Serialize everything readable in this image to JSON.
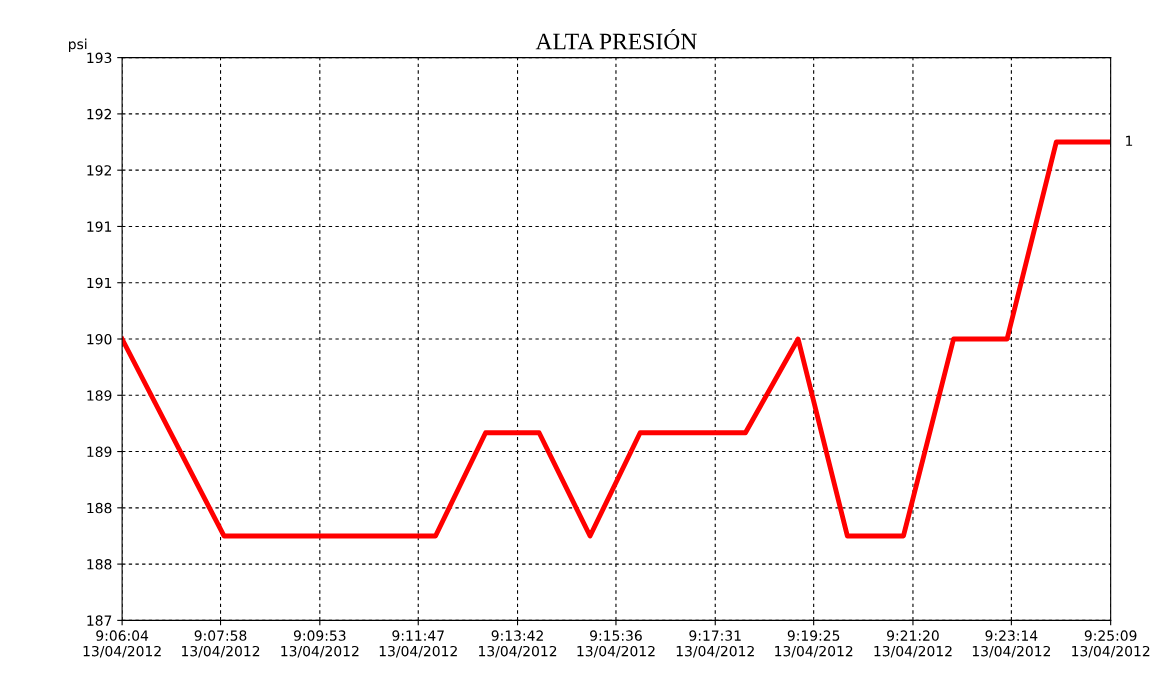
{
  "chart_data": {
    "type": "line",
    "title": "ALTA PRESIÓN",
    "ylabel": "psi",
    "x": [
      "2012-04-13T09:06:04",
      "2012-04-13T09:08:02",
      "2012-04-13T09:12:07",
      "2012-04-13T09:13:05",
      "2012-04-13T09:14:07",
      "2012-04-13T09:15:06",
      "2012-04-13T09:16:04",
      "2012-04-13T09:18:06",
      "2012-04-13T09:19:07",
      "2012-04-13T09:20:04",
      "2012-04-13T09:21:09",
      "2012-04-13T09:22:07",
      "2012-04-13T09:23:09",
      "2012-04-13T09:24:06",
      "2012-04-13T09:25:09"
    ],
    "series": [
      {
        "name": "1",
        "color": "#ff0000",
        "values": [
          190.0,
          187.9,
          187.9,
          189.0,
          189.0,
          187.9,
          189.0,
          189.0,
          190.0,
          187.9,
          187.9,
          190.0,
          190.0,
          192.1,
          192.1
        ]
      }
    ],
    "xlim": [
      "2012-04-13T09:06:04",
      "2012-04-13T09:25:09"
    ],
    "xticks": [
      {
        "value": "2012-04-13T09:06:04",
        "label": "9:06:04\n13/04/2012"
      },
      {
        "value": "2012-04-13T09:07:58",
        "label": "9:07:58\n13/04/2012"
      },
      {
        "value": "2012-04-13T09:09:53",
        "label": "9:09:53\n13/04/2012"
      },
      {
        "value": "2012-04-13T09:11:47",
        "label": "9:11:47\n13/04/2012"
      },
      {
        "value": "2012-04-13T09:13:42",
        "label": "9:13:42\n13/04/2012"
      },
      {
        "value": "2012-04-13T09:15:36",
        "label": "9:15:36\n13/04/2012"
      },
      {
        "value": "2012-04-13T09:17:31",
        "label": "9:17:31\n13/04/2012"
      },
      {
        "value": "2012-04-13T09:19:25",
        "label": "9:19:25\n13/04/2012"
      },
      {
        "value": "2012-04-13T09:21:20",
        "label": "9:21:20\n13/04/2012"
      },
      {
        "value": "2012-04-13T09:23:14",
        "label": "9:23:14\n13/04/2012"
      },
      {
        "value": "2012-04-13T09:25:09",
        "label": "9:25:09\n13/04/2012"
      }
    ],
    "ylim": [
      187,
      193
    ],
    "yticks": [
      187,
      {
        "value": 187.6,
        "label": "188"
      },
      {
        "value": 188.2,
        "label": "188"
      },
      {
        "value": 188.8,
        "label": "189"
      },
      {
        "value": 189.4,
        "label": "189"
      },
      190,
      {
        "value": 190.6,
        "label": "191"
      },
      {
        "value": 191.2,
        "label": "191"
      },
      {
        "value": 191.8,
        "label": "192"
      },
      {
        "value": 192.4,
        "label": "192"
      },
      193
    ],
    "grid": true,
    "line_style": "solid",
    "marker": "none",
    "legend": false
  }
}
